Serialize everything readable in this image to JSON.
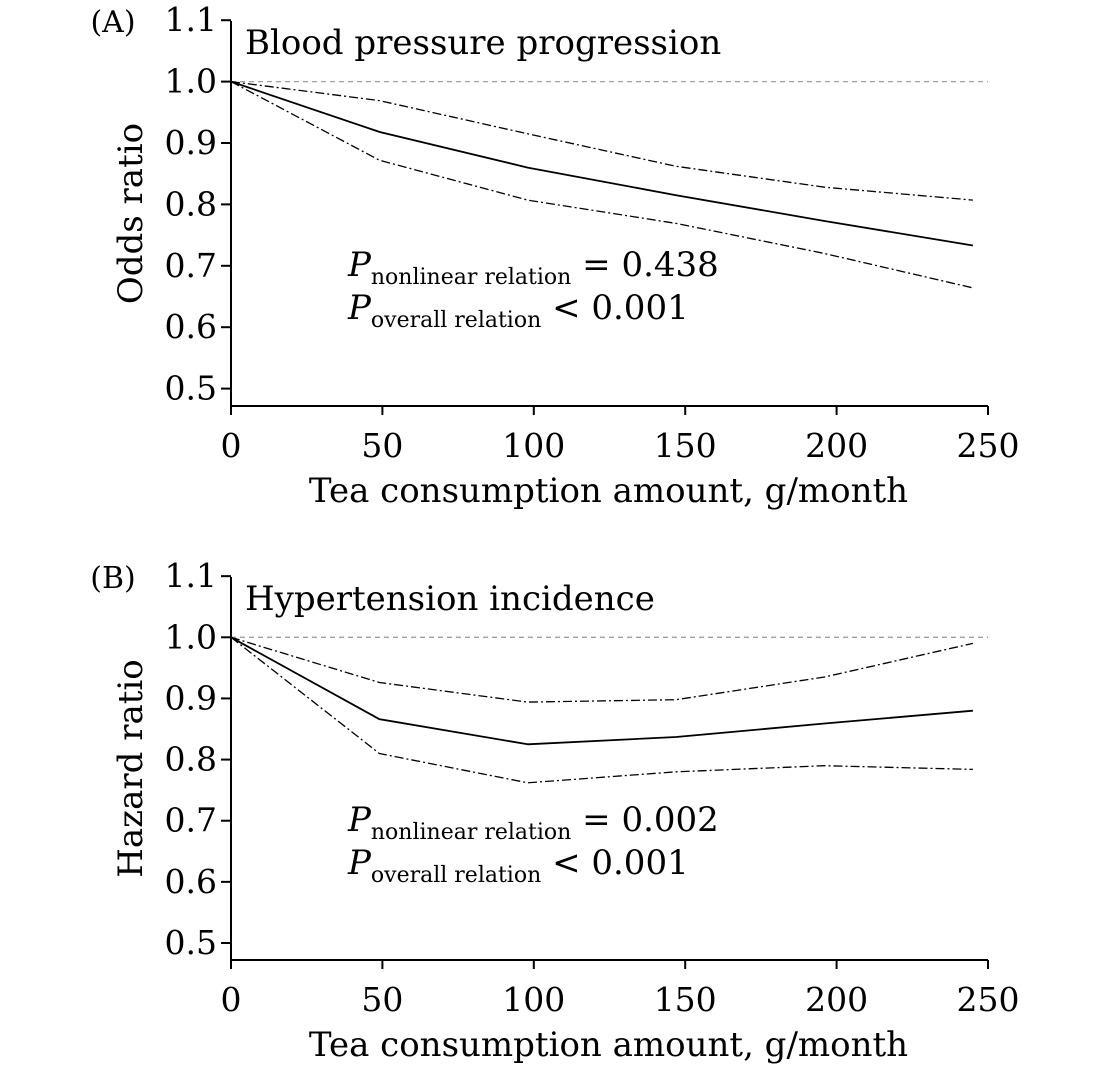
{
  "chart_data": [
    {
      "type": "line",
      "panel_label": "(A)",
      "title": "Blood pressure progression",
      "xlabel": "Tea consumption amount, g/month",
      "ylabel": "Odds ratio",
      "xlim": [
        0,
        250
      ],
      "ylim": [
        0.47,
        1.1
      ],
      "x_ticks": [
        "0",
        "50",
        "100",
        "150",
        "200",
        "250"
      ],
      "y_ticks": [
        "0.5",
        "0.6",
        "0.7",
        "0.8",
        "0.9",
        "1.0",
        "1.1"
      ],
      "reference_line": 1.0,
      "series": [
        {
          "role": "estimate",
          "x": [
            0,
            49,
            98,
            147,
            196,
            245
          ],
          "y": [
            1.0,
            0.918,
            0.86,
            0.815,
            0.773,
            0.733
          ]
        },
        {
          "role": "upper",
          "x": [
            0,
            49,
            98,
            147,
            196,
            245
          ],
          "y": [
            1.0,
            0.969,
            0.915,
            0.862,
            0.828,
            0.807
          ]
        },
        {
          "role": "lower",
          "x": [
            0,
            49,
            98,
            147,
            196,
            245
          ],
          "y": [
            1.0,
            0.872,
            0.807,
            0.769,
            0.72,
            0.664
          ]
        }
      ],
      "annotation": {
        "p_symbol": "P",
        "line1_sub": "nonlinear relation",
        "line1_rest": " = 0.438",
        "line2_sub": "overall relation",
        "line2_rest": " < 0.001"
      }
    },
    {
      "type": "line",
      "panel_label": "(B)",
      "title": "Hypertension incidence",
      "xlabel": "Tea consumption amount, g/month",
      "ylabel": "Hazard ratio",
      "xlim": [
        0,
        250
      ],
      "ylim": [
        0.47,
        1.1
      ],
      "x_ticks": [
        "0",
        "50",
        "100",
        "150",
        "200",
        "250"
      ],
      "y_ticks": [
        "0.5",
        "0.6",
        "0.7",
        "0.8",
        "0.9",
        "1.0",
        "1.1"
      ],
      "reference_line": 1.0,
      "series": [
        {
          "role": "estimate",
          "x": [
            0,
            49,
            98,
            147,
            196,
            245
          ],
          "y": [
            1.0,
            0.866,
            0.825,
            0.837,
            0.859,
            0.88
          ]
        },
        {
          "role": "upper",
          "x": [
            0,
            49,
            98,
            147,
            196,
            245
          ],
          "y": [
            1.0,
            0.926,
            0.894,
            0.898,
            0.935,
            0.99
          ]
        },
        {
          "role": "lower",
          "x": [
            0,
            49,
            98,
            147,
            196,
            245
          ],
          "y": [
            1.0,
            0.81,
            0.762,
            0.78,
            0.79,
            0.784
          ]
        }
      ],
      "annotation": {
        "p_symbol": "P",
        "line1_sub": "nonlinear relation",
        "line1_rest": " = 0.002",
        "line2_sub": "overall relation",
        "line2_rest": " < 0.001"
      }
    }
  ]
}
